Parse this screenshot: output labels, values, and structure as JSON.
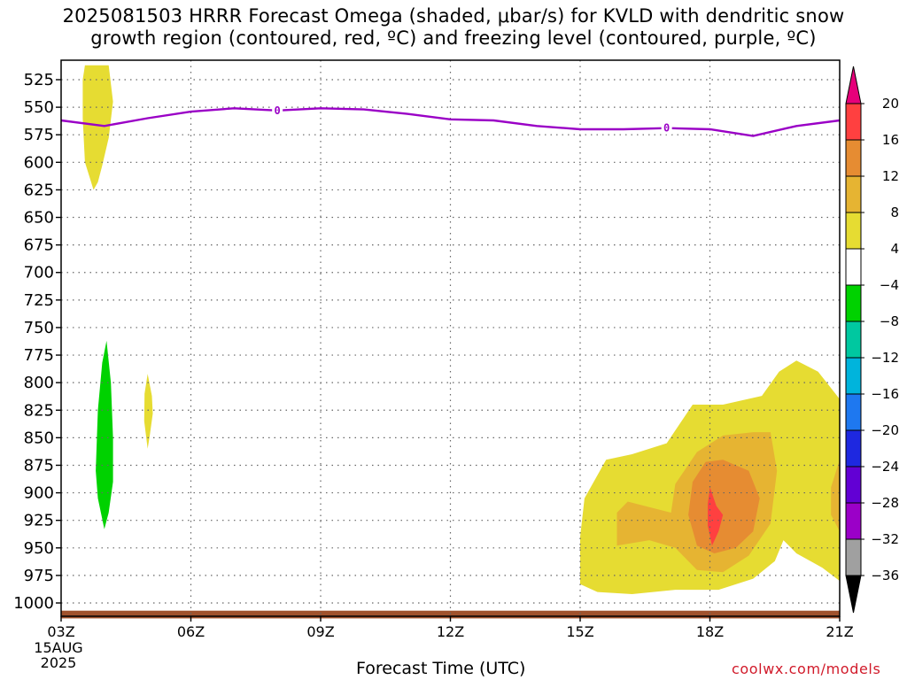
{
  "title": {
    "line1": "2025081503 HRRR Forecast Omega (shaded, μbar/s) for KVLD with dendritic snow",
    "line2": "growth region (contoured, red, ºC) and freezing level (contoured, purple, ºC)"
  },
  "xlabel": "Forecast Time (UTC)",
  "credit": "coolwx.com/models",
  "colors": {
    "freezing_level": "#9a00c6",
    "ground": "#a0522d",
    "grid": "#666666"
  },
  "chart_data": {
    "type": "time-height cross section",
    "x_axis": {
      "label": "Forecast Time (UTC)",
      "range_hours": [
        3,
        21
      ],
      "ticks": [
        {
          "hour": 3,
          "label": "03Z",
          "sub1": "15AUG",
          "sub2": "2025"
        },
        {
          "hour": 6,
          "label": "06Z"
        },
        {
          "hour": 9,
          "label": "09Z"
        },
        {
          "hour": 12,
          "label": "12Z"
        },
        {
          "hour": 15,
          "label": "15Z"
        },
        {
          "hour": 18,
          "label": "18Z"
        },
        {
          "hour": 21,
          "label": "21Z"
        }
      ]
    },
    "y_axis": {
      "unit": "hPa",
      "range": [
        1010,
        510
      ],
      "ticks": [
        525,
        550,
        575,
        600,
        625,
        650,
        675,
        700,
        725,
        750,
        775,
        800,
        825,
        850,
        875,
        900,
        925,
        950,
        975,
        1000
      ]
    },
    "grid": true,
    "colorbar": {
      "boundaries": [
        -36,
        -32,
        -28,
        -24,
        -20,
        -16,
        -12,
        -8,
        -4,
        4,
        8,
        12,
        16,
        20
      ],
      "colors": [
        "#a0a0a0",
        "#9b00c8",
        "#6200d4",
        "#1e28e0",
        "#1e78f0",
        "#00b4dc",
        "#00c8a0",
        "#00d200",
        "#ffffff",
        "#e6dc32",
        "#e6b432",
        "#e68c32",
        "#ff4040"
      ],
      "under_color": "#000000",
      "over_color": "#e6007a"
    },
    "omega_regions": [
      {
        "name": "upper yellow plume",
        "level": "4 to 8",
        "color": "#e6dc32",
        "points": [
          [
            3.55,
            512
          ],
          [
            4.1,
            512
          ],
          [
            4.2,
            545
          ],
          [
            4.1,
            578
          ],
          [
            3.95,
            603
          ],
          [
            3.85,
            618
          ],
          [
            3.75,
            625
          ],
          [
            3.55,
            600
          ],
          [
            3.5,
            560
          ],
          [
            3.5,
            525
          ]
        ]
      },
      {
        "name": "green column",
        "level": "-8 to -4",
        "color": "#00d200",
        "points": [
          [
            4.05,
            762
          ],
          [
            4.15,
            800
          ],
          [
            4.2,
            850
          ],
          [
            4.2,
            890
          ],
          [
            4.1,
            918
          ],
          [
            4.0,
            933
          ],
          [
            3.85,
            905
          ],
          [
            3.8,
            880
          ],
          [
            3.85,
            825
          ],
          [
            3.95,
            782
          ]
        ]
      },
      {
        "name": "small yellow blob",
        "level": "4 to 8",
        "color": "#e6dc32",
        "points": [
          [
            5.0,
            792
          ],
          [
            5.1,
            812
          ],
          [
            5.12,
            828
          ],
          [
            5.05,
            848
          ],
          [
            5.0,
            860
          ],
          [
            4.92,
            835
          ],
          [
            4.93,
            810
          ]
        ]
      },
      {
        "name": "lower right yellow",
        "level": "4 to 8",
        "color": "#e6dc32",
        "points": [
          [
            15.0,
            940
          ],
          [
            15.1,
            905
          ],
          [
            15.6,
            870
          ],
          [
            16.2,
            865
          ],
          [
            17.0,
            855
          ],
          [
            17.6,
            820
          ],
          [
            18.3,
            820
          ],
          [
            19.2,
            812
          ],
          [
            19.6,
            790
          ],
          [
            20.0,
            780
          ],
          [
            20.5,
            790
          ],
          [
            21.0,
            815
          ],
          [
            21.0,
            980
          ],
          [
            20.6,
            968
          ],
          [
            20.0,
            955
          ],
          [
            19.7,
            943
          ],
          [
            19.5,
            962
          ],
          [
            19.0,
            978
          ],
          [
            18.2,
            988
          ],
          [
            17.2,
            988
          ],
          [
            16.2,
            992
          ],
          [
            15.4,
            990
          ],
          [
            15.0,
            983
          ]
        ]
      },
      {
        "name": "lower right light orange",
        "level": "8 to 12",
        "color": "#e6b432",
        "points": [
          [
            15.85,
            918
          ],
          [
            16.1,
            908
          ],
          [
            16.6,
            913
          ],
          [
            17.1,
            918
          ],
          [
            17.2,
            892
          ],
          [
            17.7,
            863
          ],
          [
            18.3,
            848
          ],
          [
            19.0,
            845
          ],
          [
            19.4,
            845
          ],
          [
            19.55,
            880
          ],
          [
            19.4,
            928
          ],
          [
            18.9,
            957
          ],
          [
            18.3,
            972
          ],
          [
            17.7,
            970
          ],
          [
            17.2,
            950
          ],
          [
            16.6,
            943
          ],
          [
            15.85,
            948
          ]
        ]
      },
      {
        "name": "right edge light orange",
        "level": "8 to 12",
        "color": "#e6b432",
        "points": [
          [
            21.0,
            870
          ],
          [
            20.8,
            895
          ],
          [
            20.8,
            920
          ],
          [
            21.0,
            935
          ]
        ]
      },
      {
        "name": "lower right orange",
        "level": "12 to 16",
        "color": "#e68c32",
        "points": [
          [
            17.5,
            920
          ],
          [
            17.6,
            890
          ],
          [
            17.9,
            872
          ],
          [
            18.3,
            870
          ],
          [
            18.9,
            880
          ],
          [
            19.15,
            905
          ],
          [
            19.0,
            935
          ],
          [
            18.6,
            950
          ],
          [
            18.1,
            955
          ],
          [
            17.7,
            948
          ]
        ]
      },
      {
        "name": "lower right red core",
        "level": "16 to 20",
        "color": "#ff4040",
        "points": [
          [
            18.0,
            895
          ],
          [
            18.15,
            912
          ],
          [
            18.3,
            920
          ],
          [
            18.2,
            935
          ],
          [
            18.05,
            948
          ],
          [
            17.95,
            930
          ],
          [
            17.95,
            910
          ]
        ]
      }
    ],
    "freezing_level_contour": {
      "value_label": "0",
      "points": [
        [
          3,
          562
        ],
        [
          4,
          567
        ],
        [
          5,
          560
        ],
        [
          6,
          554
        ],
        [
          7,
          551
        ],
        [
          8,
          553
        ],
        [
          9,
          551
        ],
        [
          10,
          552
        ],
        [
          11,
          556
        ],
        [
          12,
          561
        ],
        [
          13,
          562
        ],
        [
          14,
          567
        ],
        [
          15,
          570
        ],
        [
          16,
          570
        ],
        [
          17,
          569
        ],
        [
          18,
          570
        ],
        [
          19,
          576
        ],
        [
          20,
          567
        ],
        [
          21,
          562
        ]
      ],
      "labels_at_hours": [
        8,
        17
      ]
    },
    "ground_level_hpa": [
      1007,
      1014
    ]
  }
}
